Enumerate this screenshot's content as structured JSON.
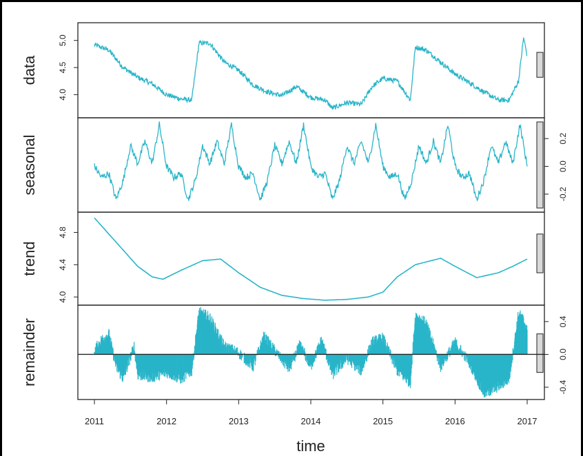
{
  "chart_data": {
    "type": "line",
    "title": "",
    "xlabel": "time",
    "x_ticks": [
      "2011",
      "2012",
      "2013",
      "2014",
      "2015",
      "2016",
      "2017"
    ],
    "x_range": [
      2011,
      2017
    ],
    "colors": {
      "series": "#29b5c9",
      "axis": "#222222",
      "bar_fill": "#d9d9d9"
    },
    "panels": [
      {
        "key": "data",
        "label": "data",
        "ylim": [
          3.65,
          5.25
        ],
        "y_ticks": [
          "4.0",
          "4.5",
          "5.0"
        ],
        "y_tick_values": [
          4.0,
          4.5,
          5.0
        ],
        "tick_side": "left",
        "style": "line",
        "scale_bar": [
          4.32,
          4.78
        ],
        "x": [
          2011.0,
          2011.2,
          2011.4,
          2011.6,
          2011.8,
          2012.0,
          2012.2,
          2012.35,
          2012.45,
          2012.6,
          2012.8,
          2013.0,
          2013.2,
          2013.4,
          2013.6,
          2013.8,
          2014.0,
          2014.2,
          2014.3,
          2014.5,
          2014.7,
          2014.85,
          2015.0,
          2015.2,
          2015.38,
          2015.45,
          2015.6,
          2015.8,
          2016.0,
          2016.2,
          2016.4,
          2016.6,
          2016.75,
          2016.88,
          2016.95,
          2017.0
        ],
        "values": [
          4.92,
          4.82,
          4.5,
          4.32,
          4.2,
          4.0,
          3.92,
          3.9,
          4.95,
          4.95,
          4.6,
          4.45,
          4.18,
          4.05,
          3.98,
          4.15,
          3.95,
          3.9,
          3.75,
          3.85,
          3.82,
          4.15,
          4.3,
          4.25,
          3.9,
          4.88,
          4.82,
          4.6,
          4.38,
          4.22,
          4.05,
          3.9,
          3.9,
          4.25,
          5.05,
          4.72
        ]
      },
      {
        "key": "seasonal",
        "label": "seasonal",
        "ylim": [
          -0.3,
          0.32
        ],
        "y_ticks": [
          "-0.2",
          "0.0",
          "0.2"
        ],
        "y_tick_values": [
          -0.2,
          0.0,
          0.2
        ],
        "tick_side": "right",
        "style": "line",
        "scale_bar": [
          -0.3,
          0.32
        ],
        "x": [
          2011.0,
          2011.1,
          2011.2,
          2011.3,
          2011.4,
          2011.5,
          2011.6,
          2011.7,
          2011.8,
          2011.9,
          2012.0
        ],
        "values": [
          0.0,
          -0.08,
          -0.05,
          -0.24,
          -0.1,
          0.15,
          0.02,
          0.18,
          0.02,
          0.3,
          0.0
        ]
      },
      {
        "key": "trend",
        "label": "trend",
        "ylim": [
          3.95,
          5.0
        ],
        "y_ticks": [
          "4.0",
          "4.4",
          "4.8"
        ],
        "y_tick_values": [
          4.0,
          4.4,
          4.8
        ],
        "tick_side": "left",
        "style": "line",
        "scale_bar": [
          4.3,
          4.78
        ],
        "x": [
          2011.0,
          2011.3,
          2011.6,
          2011.8,
          2011.95,
          2012.2,
          2012.5,
          2012.75,
          2013.0,
          2013.3,
          2013.6,
          2013.9,
          2014.2,
          2014.5,
          2014.8,
          2015.0,
          2015.2,
          2015.45,
          2015.8,
          2016.0,
          2016.3,
          2016.6,
          2016.8,
          2017.0
        ],
        "values": [
          4.98,
          4.68,
          4.38,
          4.25,
          4.22,
          4.33,
          4.45,
          4.47,
          4.3,
          4.12,
          4.02,
          3.98,
          3.96,
          3.97,
          4.0,
          4.06,
          4.25,
          4.4,
          4.48,
          4.38,
          4.24,
          4.3,
          4.38,
          4.47
        ]
      },
      {
        "key": "remainder",
        "label": "remainder",
        "ylim": [
          -0.5,
          0.55
        ],
        "y_ticks": [
          "-0.4",
          "0.0",
          "0.4"
        ],
        "y_tick_values": [
          -0.4,
          0.0,
          0.4
        ],
        "tick_side": "right",
        "style": "hist",
        "scale_bar": [
          -0.22,
          0.25
        ],
        "x": [
          2011.0,
          2011.1,
          2011.2,
          2011.3,
          2011.4,
          2011.55,
          2011.6,
          2011.8,
          2012.0,
          2012.2,
          2012.35,
          2012.45,
          2012.6,
          2012.8,
          2013.0,
          2013.2,
          2013.35,
          2013.5,
          2013.7,
          2013.85,
          2014.0,
          2014.15,
          2014.3,
          2014.5,
          2014.7,
          2014.85,
          2015.0,
          2015.2,
          2015.38,
          2015.45,
          2015.6,
          2015.8,
          2016.0,
          2016.2,
          2016.4,
          2016.55,
          2016.75,
          2016.88,
          2016.95,
          2017.0
        ],
        "values": [
          0.05,
          0.18,
          0.25,
          -0.15,
          -0.3,
          0.1,
          -0.25,
          -0.28,
          -0.22,
          -0.3,
          -0.2,
          0.52,
          0.45,
          0.1,
          0.02,
          -0.15,
          0.22,
          0.05,
          -0.18,
          0.12,
          -0.15,
          0.18,
          -0.25,
          -0.05,
          -0.2,
          0.15,
          0.2,
          -0.2,
          -0.35,
          0.48,
          0.38,
          -0.15,
          0.15,
          -0.1,
          -0.48,
          -0.42,
          -0.3,
          0.5,
          0.42,
          0.3
        ]
      }
    ]
  }
}
